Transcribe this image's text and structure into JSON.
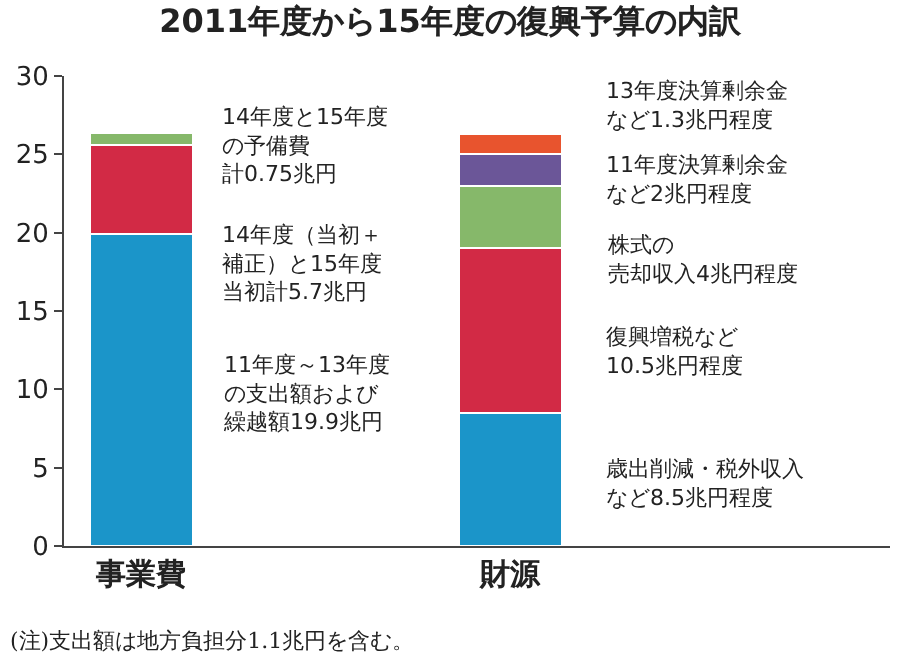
{
  "chart_data": {
    "type": "bar",
    "title": "2011年度から15年度の復興予算の内訳",
    "categories": [
      "事業費",
      "財源"
    ],
    "stacked": true,
    "series": [
      {
        "color": "#1b95c9",
        "values": [
          19.9,
          8.5
        ]
      },
      {
        "color": "#d22a45",
        "values": [
          5.7,
          10.5
        ]
      },
      {
        "color": "#86b86a",
        "values": [
          0.75,
          4
        ]
      },
      {
        "color": "#6b5698",
        "values": [
          null,
          2
        ]
      },
      {
        "color": "#e8542e",
        "values": [
          null,
          1.3
        ]
      }
    ],
    "ylim": [
      0,
      30
    ],
    "yticks": [
      0,
      5,
      10,
      15,
      20,
      25,
      30
    ],
    "grid": false,
    "legend": false,
    "annotations": [
      "14年度と15年度の予備費計0.75兆円",
      "14年度（当初＋補正）と15年度当初計5.7兆円",
      "11年度～13年度の支出額および繰越額19.9兆円",
      "13年度決算剰余金など1.3兆円程度",
      "11年度決算剰余金など2兆円程度",
      "株式の売却収入4兆円程度",
      "復興増税など10.5兆円程度",
      "歳出削減・税外収入など8.5兆円程度",
      "(注)支出額は地方負担分1.1兆円を含む。"
    ]
  }
}
